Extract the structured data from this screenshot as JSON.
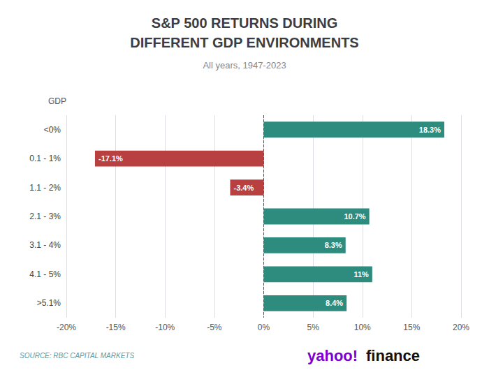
{
  "chart_data": {
    "type": "bar",
    "orientation": "horizontal",
    "title": "S&P 500 RETURNS DURING\nDIFFERENT GDP ENVIRONMENTS",
    "subtitle": "All years, 1947-2023",
    "ylabel": "GDP",
    "categories": [
      "<0%",
      "0.1 - 1%",
      "1.1 - 2%",
      "2.1 - 3%",
      "3.1 - 4%",
      "4.1 - 5%",
      ">5.1%"
    ],
    "values": [
      18.3,
      -17.1,
      -3.4,
      10.7,
      8.3,
      11.0,
      8.4
    ],
    "value_labels": [
      "18.3%",
      "-17.1%",
      "-3.4%",
      "10.7%",
      "8.3%",
      "11%",
      "8.4%"
    ],
    "data_labels": true,
    "colors": [
      "#2d8c7e",
      "#b94040",
      "#b94040",
      "#2d8c7e",
      "#2d8c7e",
      "#2d8c7e",
      "#2d8c7e"
    ],
    "xlim": [
      -20,
      20
    ],
    "xticks": [
      {
        "value": -20,
        "label": "-20%"
      },
      {
        "value": -15,
        "label": "-15%"
      },
      {
        "value": -10,
        "label": "-10%"
      },
      {
        "value": -5,
        "label": "-5%"
      },
      {
        "value": 0,
        "label": "0%"
      },
      {
        "value": 5,
        "label": "5%"
      },
      {
        "value": 10,
        "label": "10%"
      },
      {
        "value": 15,
        "label": "15%"
      },
      {
        "value": 20,
        "label": "20%"
      }
    ],
    "grid": true,
    "annotations": [
      {
        "text": "SOURCE: RBC CAPITAL MARKETS",
        "color": "#5b9aa0"
      },
      {
        "text": "yahoo!",
        "color": "#7b00d4"
      },
      {
        "text": "finance",
        "color": "#111111"
      }
    ]
  }
}
